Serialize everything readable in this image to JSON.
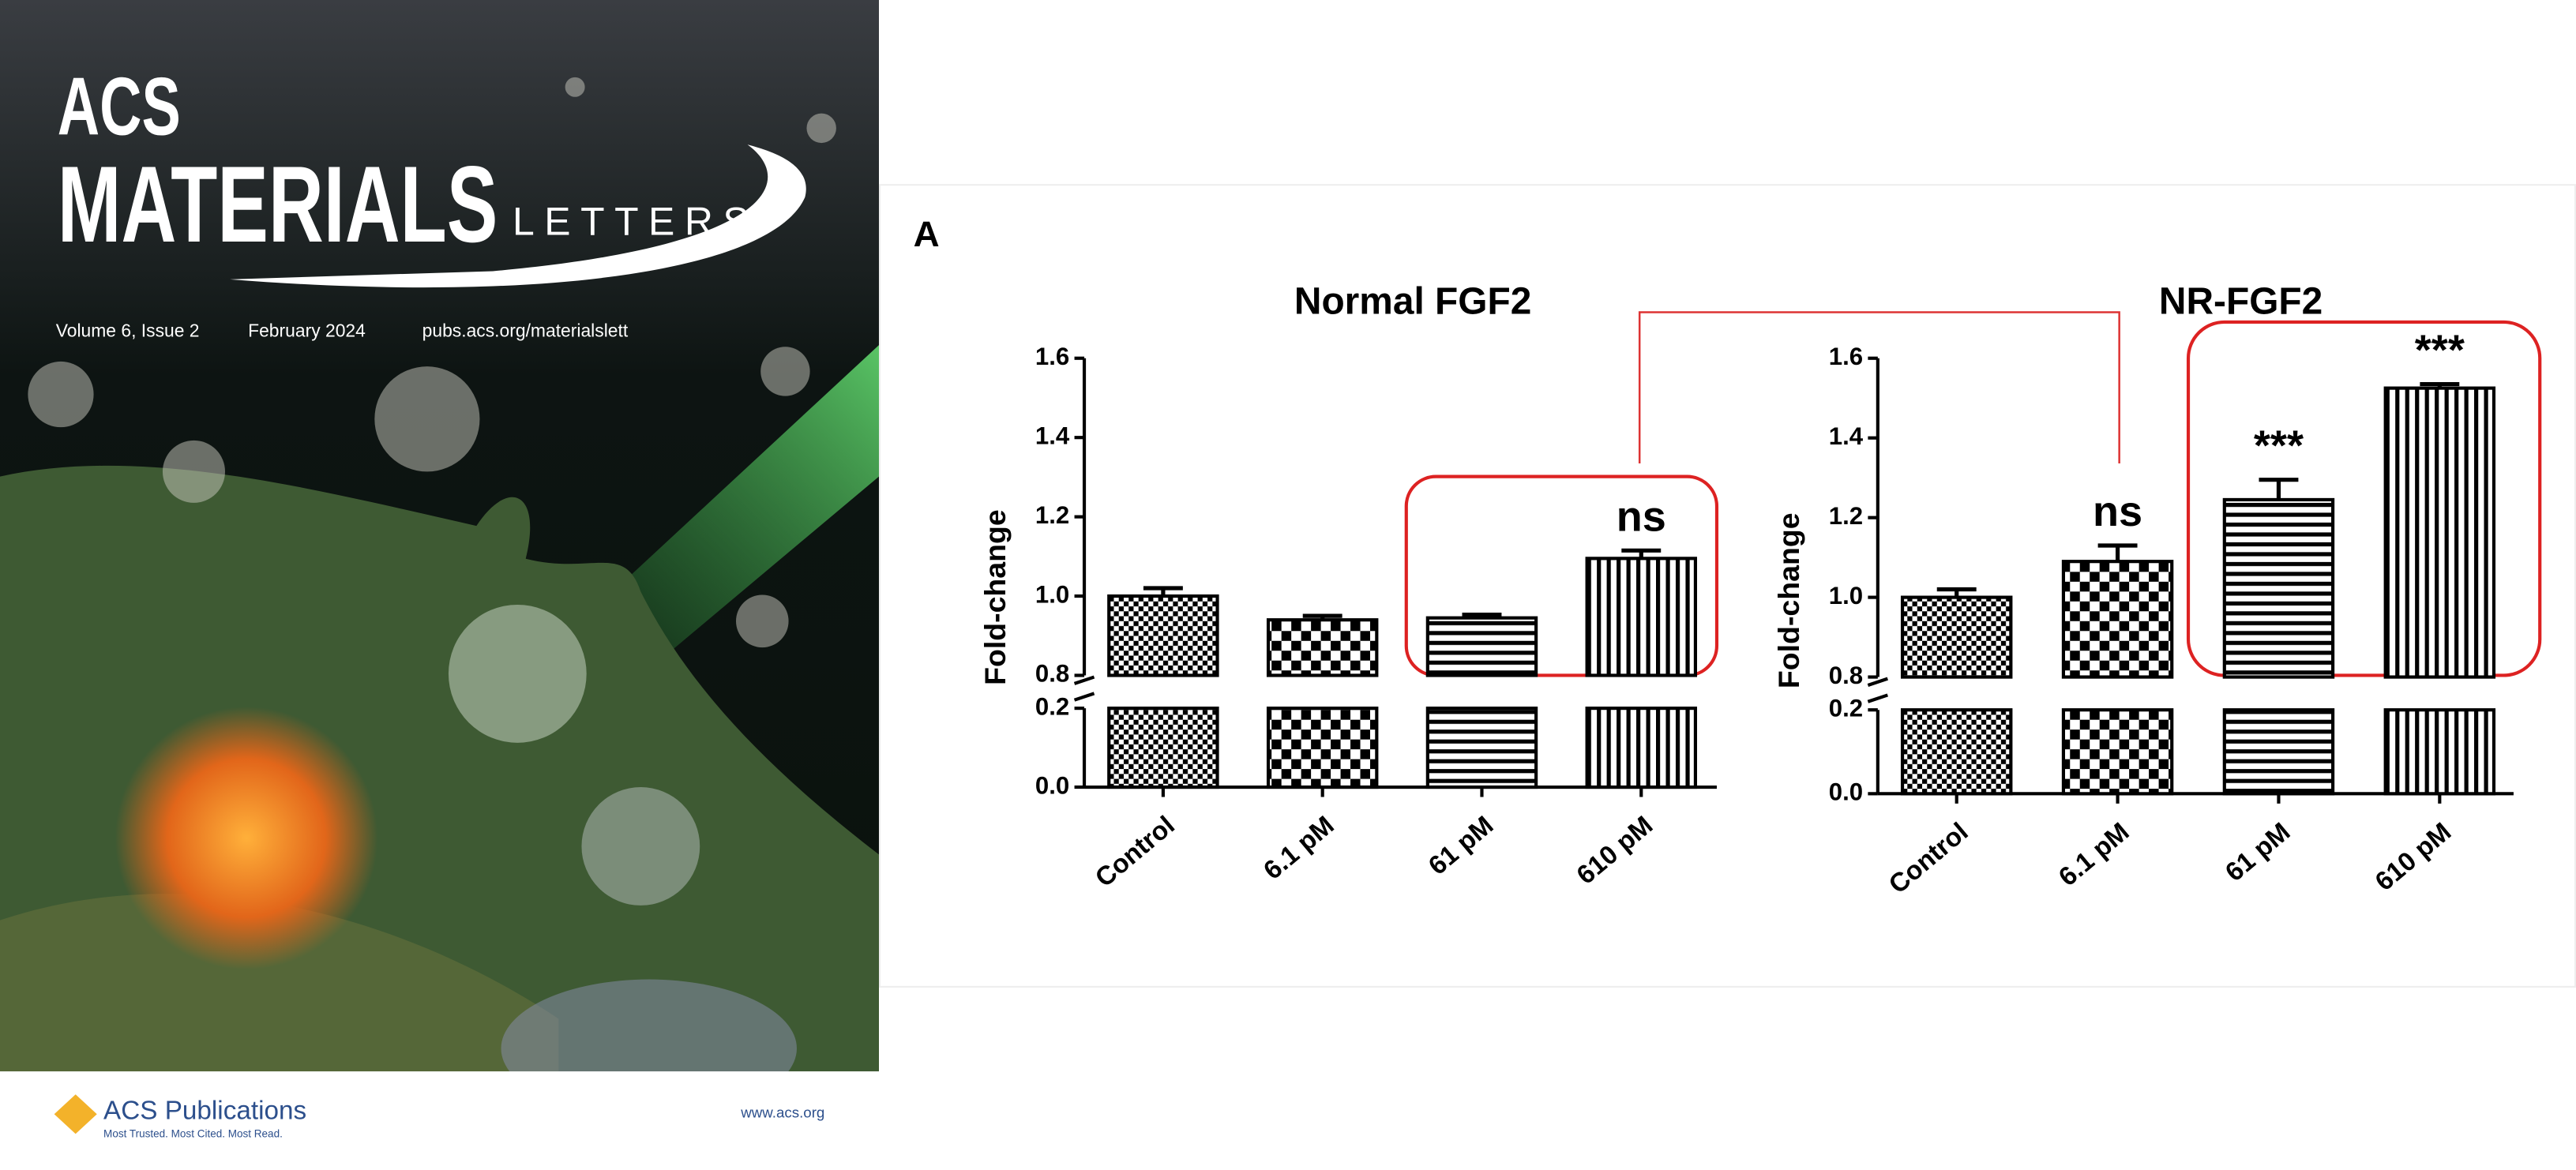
{
  "cover": {
    "journal_line1": "ACS",
    "journal_line2": "MATERIALS",
    "journal_line3": "LETTERS",
    "volume": "Volume 6, Issue 2",
    "date": "February 2024",
    "url": "pubs.acs.org/materialslett",
    "publisher": "ACS Publications",
    "tagline": "Most Trusted. Most Cited. Most Read.",
    "website": "www.acs.org"
  },
  "panel_label": "A",
  "chart_data": [
    {
      "type": "bar",
      "title": "Normal FGF2",
      "y_label": "Fold-change",
      "categories": [
        "Control",
        "6.1 pM",
        "61 pM",
        "610 pM"
      ],
      "values": [
        1.0,
        0.94,
        0.945,
        1.095
      ],
      "errors": [
        0.02,
        0.01,
        0.008,
        0.02
      ],
      "annotations": [
        null,
        null,
        null,
        "ns"
      ],
      "ylim": [
        0,
        1.6
      ],
      "axis_break": [
        0.2,
        0.8
      ],
      "yticks": [
        {
          "value": 0,
          "label": "0.0"
        },
        0.2,
        0.8,
        {
          "value": 1,
          "label": "1.0"
        },
        1.2,
        1.4,
        1.6
      ]
    },
    {
      "type": "bar",
      "title": "NR-FGF2",
      "y_label": "Fold-change",
      "categories": [
        "Control",
        "6.1 pM",
        "61 pM",
        "610 pM"
      ],
      "values": [
        1.0,
        1.09,
        1.245,
        1.525
      ],
      "errors": [
        0.02,
        0.04,
        0.05,
        0.01
      ],
      "annotations": [
        null,
        "ns",
        "***",
        "***"
      ],
      "ylim": [
        0,
        1.6
      ],
      "axis_break": [
        0.2,
        0.8
      ],
      "yticks": [
        {
          "value": 0,
          "label": "0.0"
        },
        0.2,
        0.8,
        {
          "value": 1,
          "label": "1.0"
        },
        1.2,
        1.4,
        1.6
      ]
    }
  ]
}
